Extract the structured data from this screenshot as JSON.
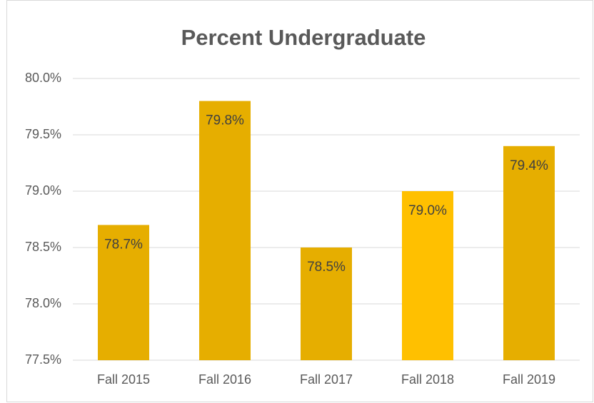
{
  "chart_data": {
    "type": "bar",
    "title": "Percent Undergraduate",
    "categories": [
      "Fall 2015",
      "Fall 2016",
      "Fall 2017",
      "Fall 2018",
      "Fall 2019"
    ],
    "values": [
      78.7,
      79.8,
      78.5,
      79.0,
      79.4
    ],
    "value_labels": [
      "78.7%",
      "79.8%",
      "78.5%",
      "79.0%",
      "79.4%"
    ],
    "colors": [
      "#e6ae00",
      "#e6ae00",
      "#e6ae00",
      "#ffc000",
      "#e6ae00"
    ],
    "ylim": [
      77.5,
      80.0
    ],
    "yticks": [
      {
        "value": 77.5,
        "label": "77.5%"
      },
      {
        "value": 78.0,
        "label": "78.0%"
      },
      {
        "value": 78.5,
        "label": "78.5%"
      },
      {
        "value": 79.0,
        "label": "79.0%"
      },
      {
        "value": 79.5,
        "label": "79.5%"
      },
      {
        "value": 80.0,
        "label": "80.0%"
      }
    ],
    "grid": true
  }
}
